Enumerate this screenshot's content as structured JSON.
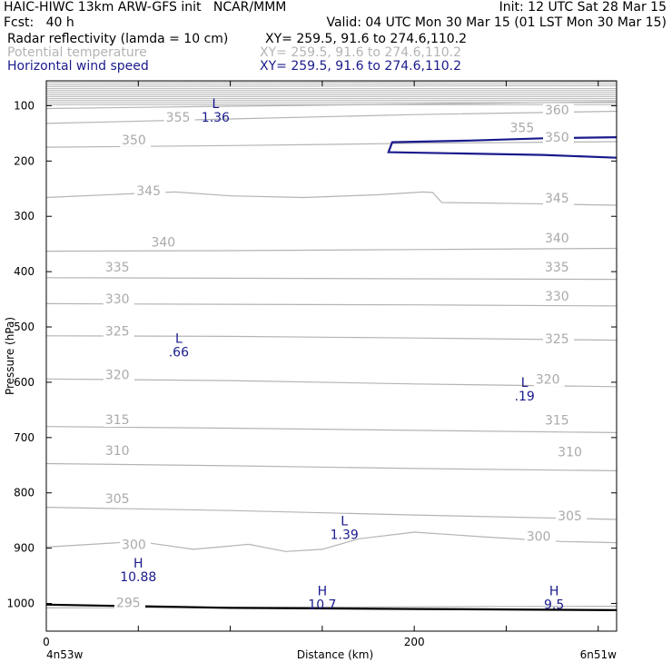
{
  "header": {
    "line1_left": "HAIC-HIWC 13km ARW-GFS init   NCAR/MMM",
    "line1_right": "Init: 12 UTC Sat 28 Mar 15",
    "line2_left": "Fcst:   40 h",
    "line2_right": "Valid: 04 UTC Mon 30 Mar 15 (01 LST Mon 30 Mar 15)",
    "fields": [
      {
        "label": "Radar reflectivity (lamda = 10 cm)",
        "xy": "XY= 259.5, 91.6 to 274.6,110.2",
        "color": "#000000"
      },
      {
        "label": "Potential temperature",
        "xy": "XY= 259.5, 91.6 to 274.6,110.2",
        "color": "#b4b4b4"
      },
      {
        "label": "Horizontal wind speed",
        "xy": "XY= 259.5, 91.6 to 274.6,110.2",
        "color": "#1a1a8c"
      }
    ]
  },
  "chart_data": {
    "type": "cross-section",
    "xlabel": "Distance (km)",
    "ylabel": "Pressure (hPa)",
    "xlim": [
      0,
      310
    ],
    "ylim": [
      1050,
      55
    ],
    "x_ticks": [
      0,
      200
    ],
    "y_ticks": [
      100,
      200,
      300,
      400,
      500,
      600,
      700,
      800,
      900,
      1000
    ],
    "left_endpoint": "4n53w",
    "right_endpoint": "6n51w",
    "theta_contours": [
      {
        "value": 295,
        "points": [
          [
            0,
            1008
          ],
          [
            300,
            1005
          ],
          [
            310,
            1005
          ]
        ]
      },
      {
        "value": 300,
        "points": [
          [
            0,
            898
          ],
          [
            50,
            888
          ],
          [
            80,
            902
          ],
          [
            110,
            893
          ],
          [
            130,
            906
          ],
          [
            150,
            902
          ],
          [
            170,
            883
          ],
          [
            200,
            871
          ],
          [
            240,
            880
          ],
          [
            280,
            888
          ],
          [
            310,
            890
          ]
        ]
      },
      {
        "value": 305,
        "points": [
          [
            0,
            826
          ],
          [
            100,
            832
          ],
          [
            200,
            840
          ],
          [
            310,
            848
          ]
        ]
      },
      {
        "value": 310,
        "points": [
          [
            0,
            747
          ],
          [
            100,
            751
          ],
          [
            200,
            756
          ],
          [
            310,
            760
          ]
        ]
      },
      {
        "value": 315,
        "points": [
          [
            0,
            680
          ],
          [
            100,
            683
          ],
          [
            200,
            687
          ],
          [
            310,
            691
          ]
        ]
      },
      {
        "value": 320,
        "points": [
          [
            0,
            594
          ],
          [
            100,
            597
          ],
          [
            200,
            603
          ],
          [
            310,
            608
          ]
        ]
      },
      {
        "value": 325,
        "points": [
          [
            0,
            516
          ],
          [
            100,
            517
          ],
          [
            200,
            520
          ],
          [
            310,
            524
          ]
        ]
      },
      {
        "value": 330,
        "points": [
          [
            0,
            458
          ],
          [
            100,
            459
          ],
          [
            200,
            460
          ],
          [
            310,
            462
          ]
        ]
      },
      {
        "value": 335,
        "points": [
          [
            0,
            411
          ],
          [
            100,
            412
          ],
          [
            200,
            413
          ],
          [
            310,
            414
          ]
        ]
      },
      {
        "value": 340,
        "points": [
          [
            0,
            363
          ],
          [
            100,
            362
          ],
          [
            200,
            360
          ],
          [
            310,
            358
          ]
        ]
      },
      {
        "value": 345,
        "points": [
          [
            0,
            266
          ],
          [
            40,
            260
          ],
          [
            70,
            256
          ],
          [
            100,
            263
          ],
          [
            140,
            266
          ],
          [
            180,
            261
          ],
          [
            205,
            256
          ],
          [
            210,
            257
          ],
          [
            215,
            275
          ],
          [
            260,
            277
          ],
          [
            310,
            280
          ]
        ]
      },
      {
        "value": 350,
        "points": [
          [
            0,
            175
          ],
          [
            100,
            172
          ],
          [
            200,
            168
          ],
          [
            310,
            165
          ]
        ]
      },
      {
        "value": 355,
        "points": [
          [
            0,
            132
          ],
          [
            100,
            124
          ],
          [
            200,
            116
          ],
          [
            310,
            110
          ]
        ]
      },
      {
        "value": 360,
        "points": [
          [
            0,
            105
          ],
          [
            100,
            101
          ],
          [
            200,
            97
          ],
          [
            310,
            93
          ]
        ]
      }
    ],
    "contour_labels": [
      {
        "text": "295",
        "x": 38,
        "p": 1005
      },
      {
        "text": "300",
        "x": 41,
        "p": 900
      },
      {
        "text": "300",
        "x": 261,
        "p": 885
      },
      {
        "text": "305",
        "x": 32,
        "p": 817
      },
      {
        "text": "305",
        "x": 278,
        "p": 848
      },
      {
        "text": "310",
        "x": 32,
        "p": 730
      },
      {
        "text": "310",
        "x": 278,
        "p": 732
      },
      {
        "text": "315",
        "x": 32,
        "p": 674
      },
      {
        "text": "315",
        "x": 271,
        "p": 675
      },
      {
        "text": "320",
        "x": 32,
        "p": 593
      },
      {
        "text": "320",
        "x": 266,
        "p": 601
      },
      {
        "text": "325",
        "x": 32,
        "p": 514
      },
      {
        "text": "325",
        "x": 271,
        "p": 528
      },
      {
        "text": "330",
        "x": 32,
        "p": 456
      },
      {
        "text": "330",
        "x": 271,
        "p": 451
      },
      {
        "text": "335",
        "x": 32,
        "p": 398
      },
      {
        "text": "335",
        "x": 271,
        "p": 398
      },
      {
        "text": "340",
        "x": 57,
        "p": 353
      },
      {
        "text": "340",
        "x": 271,
        "p": 346
      },
      {
        "text": "345",
        "x": 49,
        "p": 260
      },
      {
        "text": "345",
        "x": 271,
        "p": 273
      },
      {
        "text": "350",
        "x": 41,
        "p": 168
      },
      {
        "text": "350",
        "x": 271,
        "p": 163
      },
      {
        "text": "355",
        "x": 65,
        "p": 127
      },
      {
        "text": "355",
        "x": 252,
        "p": 146
      },
      {
        "text": "360",
        "x": 271,
        "p": 114
      }
    ],
    "reflectivity_contour": [
      [
        0,
        1002
      ],
      [
        100,
        1008
      ],
      [
        200,
        1010
      ],
      [
        310,
        1012
      ]
    ],
    "wind_speed_contour": [
      [
        310,
        157
      ],
      [
        270,
        159
      ],
      [
        230,
        163
      ],
      [
        188,
        166
      ],
      [
        186,
        184
      ],
      [
        220,
        186
      ],
      [
        270,
        189
      ],
      [
        310,
        194
      ]
    ],
    "wind_extrema": [
      {
        "type": "L",
        "value": "1.36",
        "x": 92,
        "p": 104
      },
      {
        "type": "L",
        "value": ".66",
        "x": 72,
        "p": 529
      },
      {
        "type": "L",
        "value": ".19",
        "x": 260,
        "p": 608
      },
      {
        "type": "L",
        "value": "1.39",
        "x": 162,
        "p": 859
      },
      {
        "type": "H",
        "value": "10.88",
        "x": 50,
        "p": 935
      },
      {
        "type": "H",
        "value": "10.7",
        "x": 150,
        "p": 985
      },
      {
        "type": "H",
        "value": "9.5",
        "x": 276,
        "p": 985
      }
    ]
  }
}
